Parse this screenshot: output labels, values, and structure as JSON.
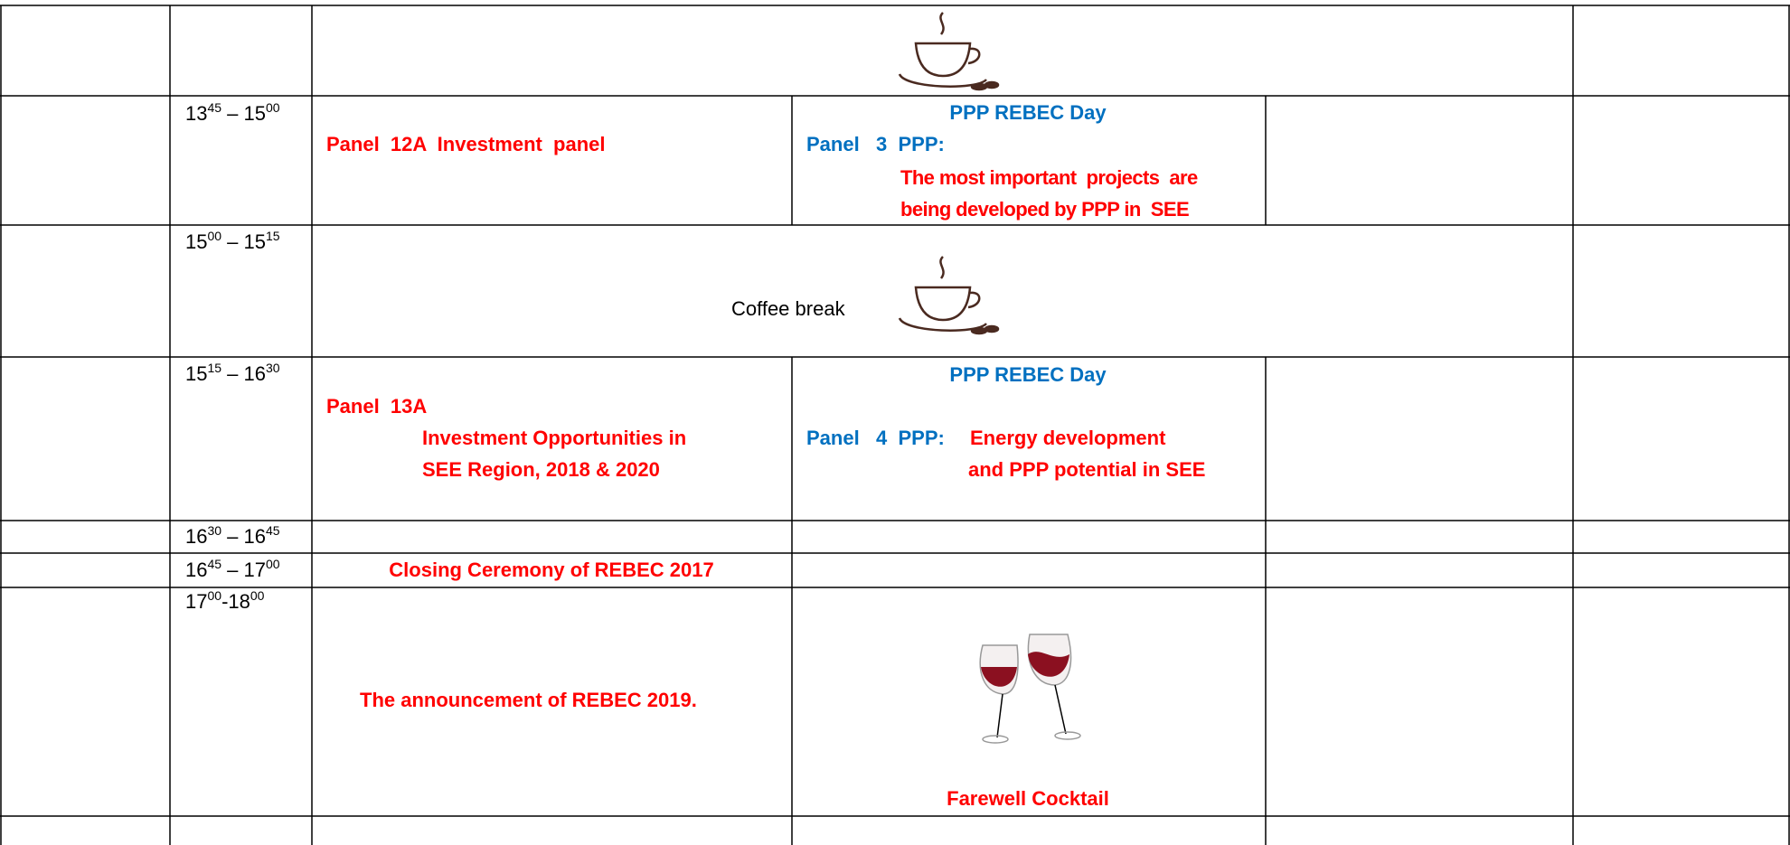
{
  "rows": [
    {
      "time": {
        "start": "13",
        "start_sup": "45",
        "sep": " – ",
        "end": "15",
        "end_sup": "00"
      },
      "left": "Panel  12A  Investment  panel",
      "right": {
        "heading": "PPP REBEC Day",
        "panel": "Panel   3  PPP:",
        "lines": [
          "The most important  projects  are",
          "being developed by PPP in  SEE"
        ]
      }
    },
    {
      "time": {
        "start": "15",
        "start_sup": "00",
        "sep": " – ",
        "end": "15",
        "end_sup": "15"
      },
      "label": "Coffee break"
    },
    {
      "time": {
        "start": "15",
        "start_sup": "15",
        "sep": " – ",
        "end": "16",
        "end_sup": "30"
      },
      "left": {
        "panel": "Panel  13A",
        "lines": [
          "Investment Opportunities in",
          "SEE Region, 2018 & 2020"
        ]
      },
      "right": {
        "heading": "PPP REBEC Day",
        "panel": "Panel   4  PPP:",
        "lines": [
          "Energy development",
          "and PPP potential in SEE"
        ]
      }
    },
    {
      "time": {
        "start": "16",
        "start_sup": "30",
        "sep": " – ",
        "end": "16",
        "end_sup": "45"
      }
    },
    {
      "time": {
        "start": "16",
        "start_sup": "45",
        "sep": " – ",
        "end": "17",
        "end_sup": "00"
      },
      "left": "Closing Ceremony of REBEC 2017"
    },
    {
      "time": {
        "start": "17",
        "start_sup": "00",
        "sep": "-",
        "end": "18",
        "end_sup": "00"
      },
      "left": "The announcement of REBEC 2019.",
      "right": "Farewell Cocktail"
    }
  ]
}
